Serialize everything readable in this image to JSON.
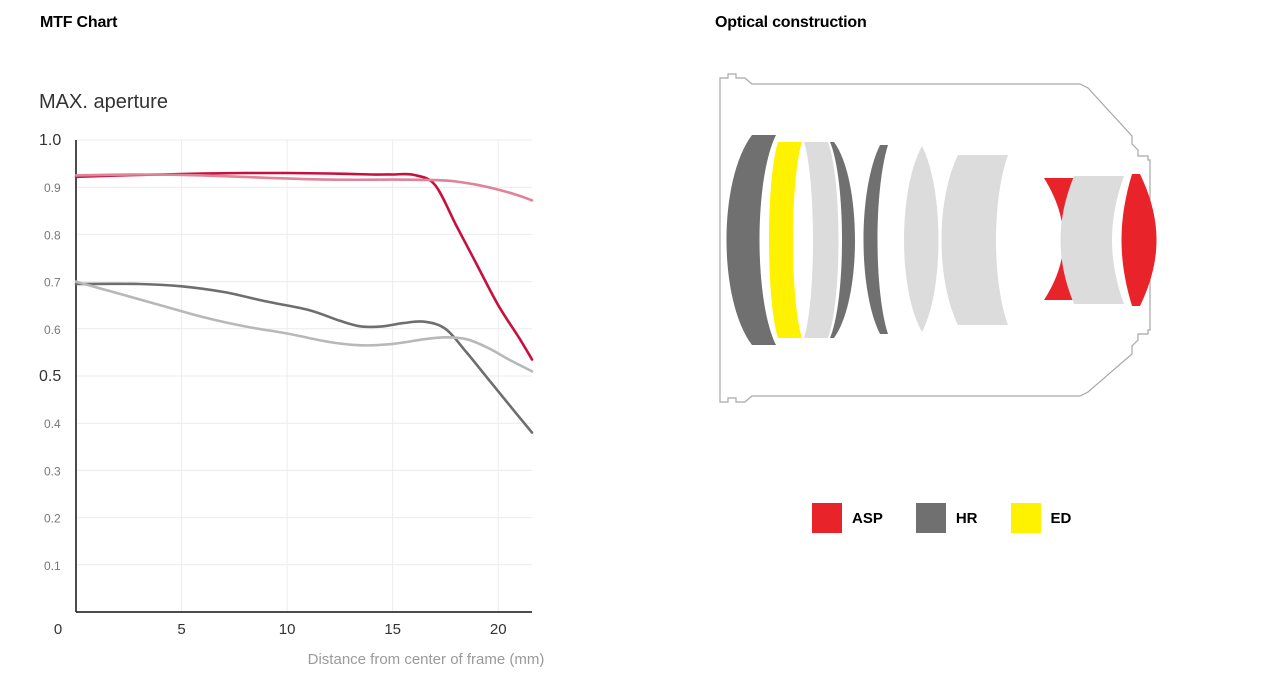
{
  "sections": {
    "mtf_heading": "MTF Chart",
    "optical_heading": "Optical construction"
  },
  "chart_data": {
    "type": "line",
    "title": "MAX. aperture",
    "xlabel": "Distance from center of frame (mm)",
    "ylabel": "",
    "xlim": [
      0,
      21.6
    ],
    "ylim": [
      0,
      1.0
    ],
    "x_ticks": [
      "0",
      "5",
      "10",
      "15",
      "20"
    ],
    "y_ticks": [
      "0.1",
      "0.2",
      "0.3",
      "0.4",
      "0.5",
      "0.6",
      "0.7",
      "0.8",
      "0.9",
      "1.0"
    ],
    "grid": true,
    "series": [
      {
        "color": "#c8103e",
        "points": [
          [
            0,
            0.922
          ],
          [
            2,
            0.925
          ],
          [
            4,
            0.927
          ],
          [
            6,
            0.929
          ],
          [
            8,
            0.93
          ],
          [
            10,
            0.93
          ],
          [
            12,
            0.929
          ],
          [
            14,
            0.927
          ],
          [
            15,
            0.927
          ],
          [
            16,
            0.926
          ],
          [
            17,
            0.905
          ],
          [
            18,
            0.82
          ],
          [
            19,
            0.735
          ],
          [
            20,
            0.65
          ],
          [
            21,
            0.58
          ],
          [
            21.6,
            0.535
          ]
        ]
      },
      {
        "color": "#e08298",
        "points": [
          [
            0,
            0.925
          ],
          [
            3,
            0.927
          ],
          [
            6,
            0.925
          ],
          [
            9,
            0.92
          ],
          [
            12,
            0.916
          ],
          [
            15,
            0.916
          ],
          [
            17,
            0.915
          ],
          [
            18,
            0.912
          ],
          [
            19,
            0.905
          ],
          [
            20,
            0.895
          ],
          [
            21,
            0.882
          ],
          [
            21.6,
            0.872
          ]
        ]
      },
      {
        "color": "#6e6e6e",
        "points": [
          [
            0,
            0.695
          ],
          [
            3,
            0.695
          ],
          [
            5,
            0.69
          ],
          [
            7,
            0.678
          ],
          [
            9,
            0.658
          ],
          [
            11,
            0.64
          ],
          [
            12.5,
            0.617
          ],
          [
            13.5,
            0.605
          ],
          [
            14.5,
            0.605
          ],
          [
            15.5,
            0.612
          ],
          [
            16.5,
            0.615
          ],
          [
            17.5,
            0.6
          ],
          [
            18.5,
            0.55
          ],
          [
            19.5,
            0.495
          ],
          [
            20.5,
            0.44
          ],
          [
            21.6,
            0.38
          ]
        ]
      },
      {
        "color": "#b8b8b8",
        "points": [
          [
            0,
            0.7
          ],
          [
            2,
            0.675
          ],
          [
            4,
            0.65
          ],
          [
            6,
            0.625
          ],
          [
            8,
            0.605
          ],
          [
            10,
            0.59
          ],
          [
            12,
            0.572
          ],
          [
            13.5,
            0.565
          ],
          [
            15,
            0.568
          ],
          [
            16.5,
            0.578
          ],
          [
            17.5,
            0.582
          ],
          [
            18.5,
            0.578
          ],
          [
            19.5,
            0.56
          ],
          [
            20.5,
            0.535
          ],
          [
            21.6,
            0.51
          ]
        ]
      }
    ]
  },
  "legend": {
    "asp_label": "ASP",
    "asp_color": "#e8232a",
    "hr_label": "HR",
    "hr_color": "#707070",
    "ed_label": "ED",
    "ed_color": "#fff200"
  },
  "lens_colors": {
    "normal": "#dcdcdc",
    "outline": "#9a9a9a"
  }
}
